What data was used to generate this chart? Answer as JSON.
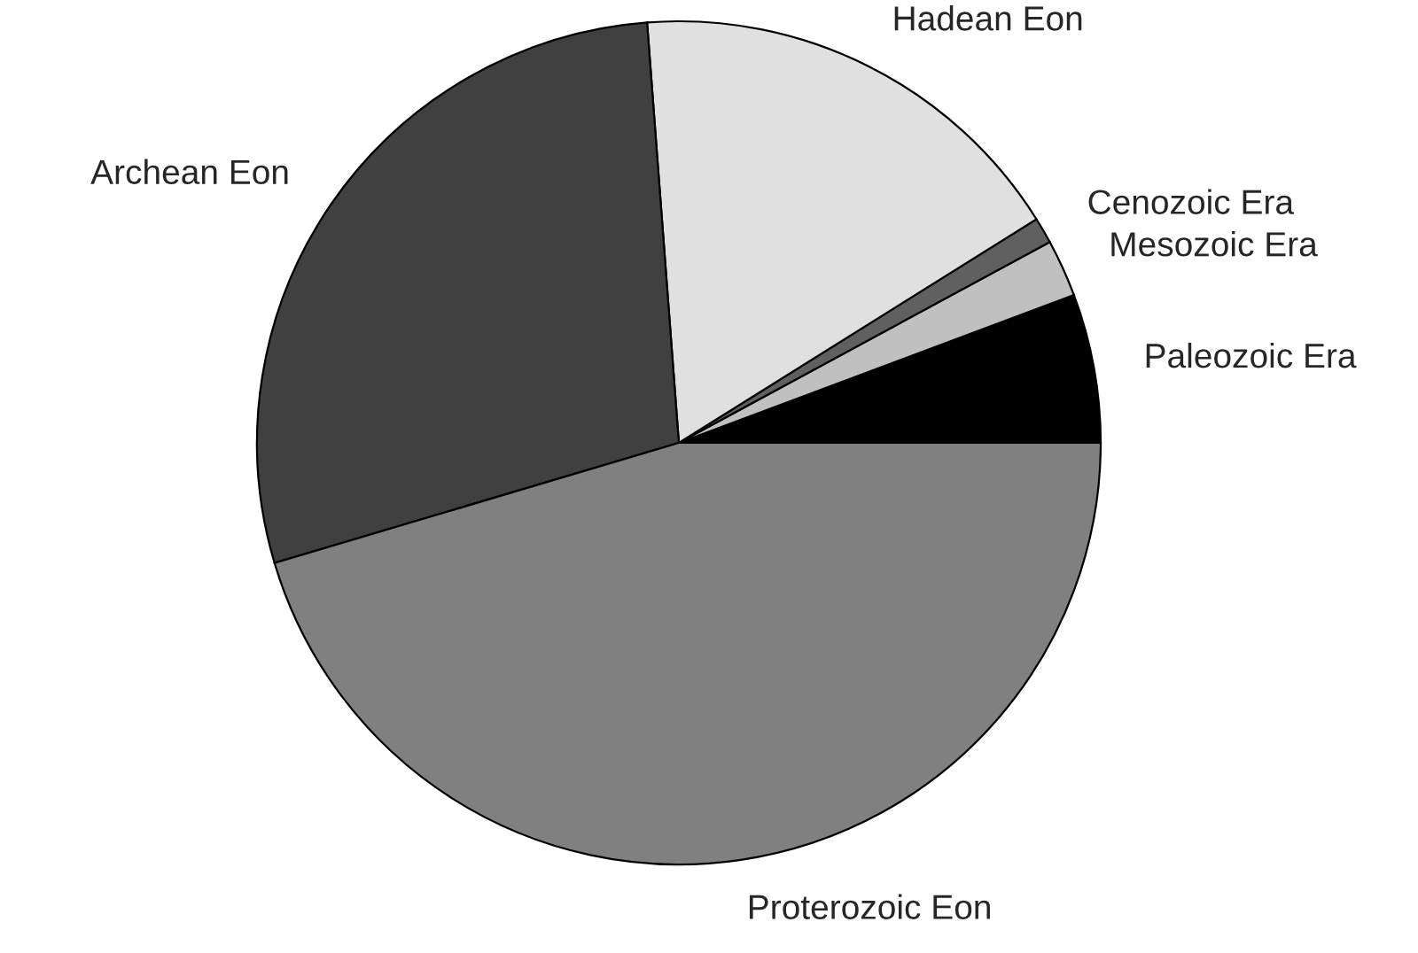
{
  "chart_data": {
    "type": "pie",
    "categories": [
      "Paleozoic Era",
      "Mesozoic Era",
      "Cenozoic Era",
      "Hadean Eon",
      "Archean Eon",
      "Proterozoic Eon"
    ],
    "values": [
      5.7,
      2.2,
      1.0,
      17.3,
      28.4,
      45.4
    ],
    "colors": [
      "#000000",
      "#c0c0c0",
      "#606060",
      "#e0e0e0",
      "#404040",
      "#808080"
    ]
  }
}
